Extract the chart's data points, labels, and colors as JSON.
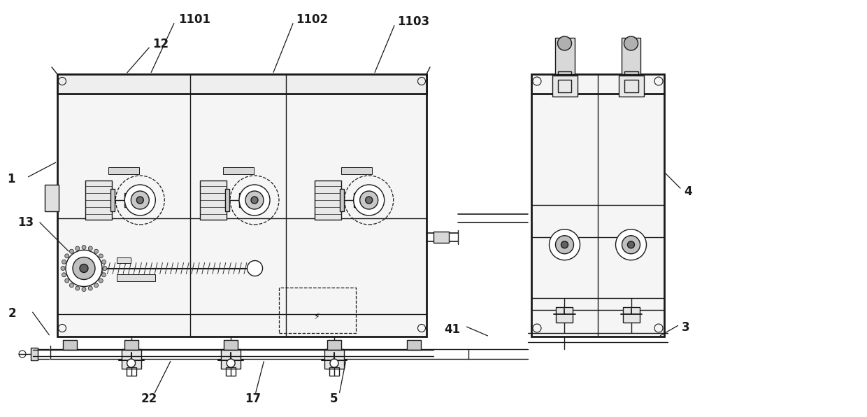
{
  "bg_color": "#ffffff",
  "lc": "#1a1a1a",
  "lw": 1.0,
  "tlw": 2.0,
  "figsize": [
    12.4,
    5.96
  ],
  "dpi": 100,
  "xlim": [
    0,
    12.4
  ],
  "ylim": [
    0,
    5.96
  ]
}
